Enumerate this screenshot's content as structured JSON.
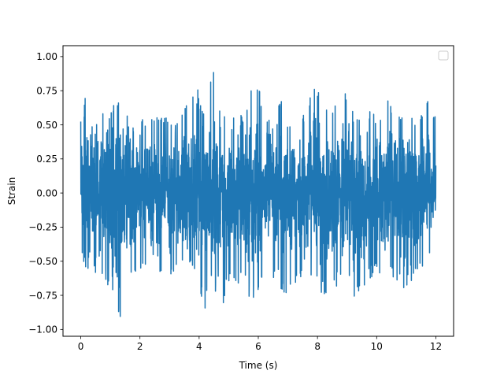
{
  "chart_data": {
    "type": "line",
    "title": "",
    "xlabel": "Time (s)",
    "ylabel": "Strain",
    "xlim": [
      -0.6,
      12.6
    ],
    "ylim": [
      -1.05,
      1.08
    ],
    "x_ticks": [
      0,
      2,
      4,
      6,
      8,
      10,
      12
    ],
    "x_tick_labels": [
      "0",
      "2",
      "4",
      "6",
      "8",
      "10",
      "12"
    ],
    "y_ticks": [
      -1.0,
      -0.75,
      -0.5,
      -0.25,
      0.0,
      0.25,
      0.5,
      0.75,
      1.0
    ],
    "y_tick_labels": [
      "−1.00",
      "−0.75",
      "−0.50",
      "−0.25",
      "0.00",
      "0.25",
      "0.50",
      "0.75",
      "1.00"
    ],
    "grid": false,
    "legend": {
      "placement": "upper right",
      "entries": []
    },
    "series": [
      {
        "color": "#1f77b4",
        "x_range": [
          0,
          12
        ],
        "signal": "dense noise, approximately ±0.5 with peaks to +1.0 and −0.96",
        "envelope": [
          {
            "x": 0.0,
            "max": 0.53,
            "min": -0.43
          },
          {
            "x": 0.1,
            "max": 0.75,
            "min": -0.55
          },
          {
            "x": 0.3,
            "max": 0.55,
            "min": -0.58
          },
          {
            "x": 0.6,
            "max": 0.58,
            "min": -0.62
          },
          {
            "x": 1.0,
            "max": 0.62,
            "min": -0.72
          },
          {
            "x": 1.3,
            "max": 0.72,
            "min": -0.96
          },
          {
            "x": 1.6,
            "max": 0.55,
            "min": -0.6
          },
          {
            "x": 2.0,
            "max": 0.55,
            "min": -0.6
          },
          {
            "x": 2.5,
            "max": 0.58,
            "min": -0.55
          },
          {
            "x": 3.0,
            "max": 0.55,
            "min": -0.62
          },
          {
            "x": 3.5,
            "max": 0.62,
            "min": -0.6
          },
          {
            "x": 3.9,
            "max": 0.82,
            "min": -0.55
          },
          {
            "x": 4.2,
            "max": 0.6,
            "min": -0.92
          },
          {
            "x": 4.4,
            "max": 1.0,
            "min": -0.6
          },
          {
            "x": 4.7,
            "max": 0.62,
            "min": -0.93
          },
          {
            "x": 5.0,
            "max": 0.55,
            "min": -0.65
          },
          {
            "x": 5.5,
            "max": 0.58,
            "min": -0.68
          },
          {
            "x": 5.9,
            "max": 0.95,
            "min": -0.85
          },
          {
            "x": 6.2,
            "max": 0.6,
            "min": -0.62
          },
          {
            "x": 6.5,
            "max": 0.85,
            "min": -0.62
          },
          {
            "x": 7.0,
            "max": 0.55,
            "min": -0.8
          },
          {
            "x": 7.5,
            "max": 0.55,
            "min": -0.6
          },
          {
            "x": 7.9,
            "max": 0.88,
            "min": -0.65
          },
          {
            "x": 8.4,
            "max": 0.55,
            "min": -0.82
          },
          {
            "x": 8.8,
            "max": 0.8,
            "min": -0.6
          },
          {
            "x": 9.3,
            "max": 0.6,
            "min": -0.78
          },
          {
            "x": 9.8,
            "max": 0.62,
            "min": -0.62
          },
          {
            "x": 10.2,
            "max": 0.78,
            "min": -0.58
          },
          {
            "x": 10.6,
            "max": 0.58,
            "min": -0.62
          },
          {
            "x": 11.0,
            "max": 0.55,
            "min": -0.72
          },
          {
            "x": 11.4,
            "max": 0.58,
            "min": -0.58
          },
          {
            "x": 11.7,
            "max": 0.7,
            "min": -0.6
          },
          {
            "x": 12.0,
            "max": 0.55,
            "min": -0.3
          }
        ]
      }
    ]
  }
}
